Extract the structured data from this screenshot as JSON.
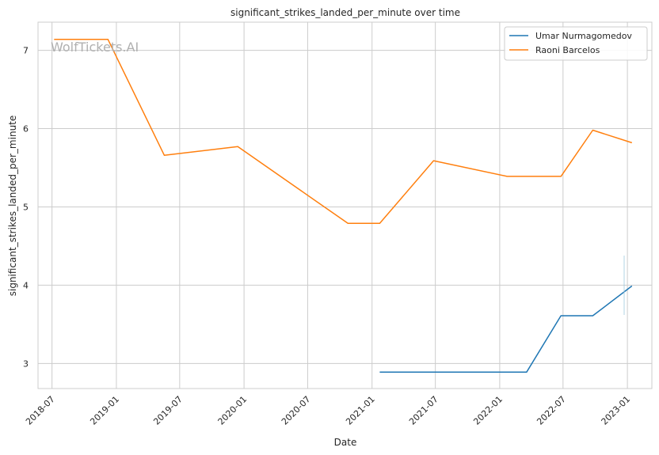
{
  "chart_data": {
    "type": "line",
    "title": "significant_strikes_landed_per_minute over time",
    "xlabel": "Date",
    "ylabel": "significant_strikes_landed_per_minute",
    "watermark": "WolfTickets.AI",
    "x_ticks": [
      "2018-07",
      "2019-01",
      "2019-07",
      "2020-01",
      "2020-07",
      "2021-01",
      "2021-07",
      "2022-01",
      "2022-07",
      "2023-01"
    ],
    "y_ticks": [
      3,
      4,
      5,
      6,
      7
    ],
    "xlim": [
      "2018-05-22",
      "2023-03-12"
    ],
    "ylim": [
      2.68,
      7.36
    ],
    "grid": true,
    "legend_position": "top-right",
    "series": [
      {
        "name": "Umar Nurmagomedov",
        "color": "#1f77b4",
        "points": [
          {
            "x": "2021-01-23",
            "y": 2.89
          },
          {
            "x": "2022-03-19",
            "y": 2.89
          },
          {
            "x": "2022-06-25",
            "y": 3.61
          },
          {
            "x": "2022-09-24",
            "y": 3.61
          },
          {
            "x": "2023-01-14",
            "y": 3.99
          }
        ]
      },
      {
        "name": "Raoni Barcelos",
        "color": "#ff7f0e",
        "points": [
          {
            "x": "2018-07-07",
            "y": 7.14
          },
          {
            "x": "2018-12-08",
            "y": 7.14
          },
          {
            "x": "2019-05-18",
            "y": 5.66
          },
          {
            "x": "2019-12-14",
            "y": 5.77
          },
          {
            "x": "2020-10-24",
            "y": 4.79
          },
          {
            "x": "2021-01-23",
            "y": 4.79
          },
          {
            "x": "2021-06-26",
            "y": 5.59
          },
          {
            "x": "2022-01-22",
            "y": 5.39
          },
          {
            "x": "2022-06-25",
            "y": 5.39
          },
          {
            "x": "2022-09-24",
            "y": 5.98
          },
          {
            "x": "2023-01-14",
            "y": 5.82
          }
        ]
      }
    ]
  }
}
